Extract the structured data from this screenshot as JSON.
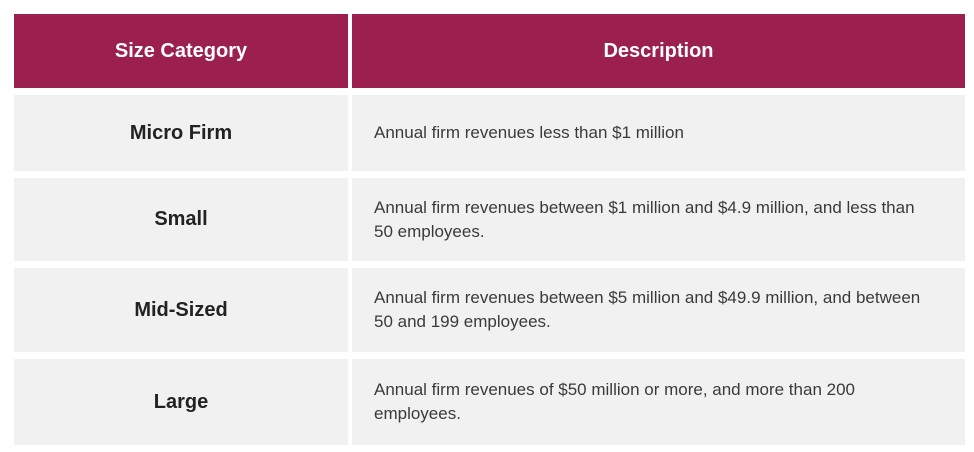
{
  "table": {
    "headers": {
      "size_category": "Size Category",
      "description": "Description"
    },
    "rows": [
      {
        "category": "Micro Firm",
        "description": "Annual firm revenues less than $1 million"
      },
      {
        "category": "Small",
        "description": "Annual firm revenues between $1 million and $4.9 million, and less than 50 employees."
      },
      {
        "category": "Mid-Sized",
        "description": "Annual firm revenues between $5 million and $49.9 million, and between 50 and 199 employees."
      },
      {
        "category": "Large",
        "description": "Annual firm revenues of $50 million or more, and more than 200 employees."
      }
    ]
  },
  "colors": {
    "header_background": "#9b1f4f",
    "header_text": "#ffffff",
    "row_background": "#f1f1f1"
  }
}
